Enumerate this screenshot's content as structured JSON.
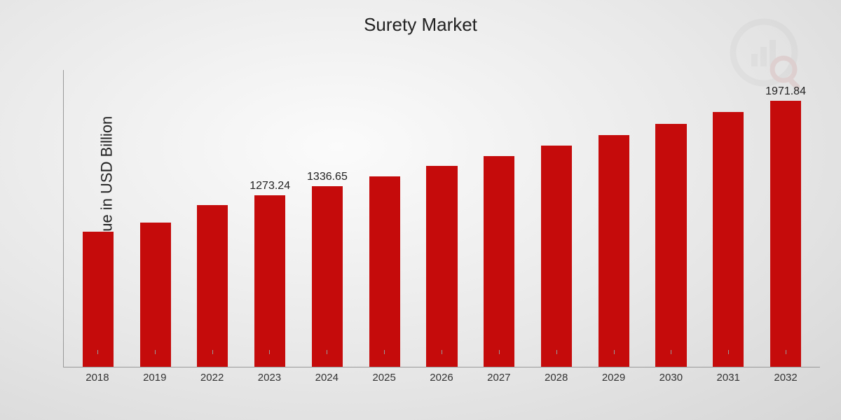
{
  "chart": {
    "type": "bar",
    "title": "Surety Market",
    "ylabel": "Market Value in USD Billion",
    "title_fontsize": 26,
    "ylabel_fontsize": 22,
    "value_label_fontsize": 16,
    "xtick_fontsize": 15,
    "background_gradient": {
      "inner": "#fbfbfb",
      "mid": "#e8e8e8",
      "outer": "#d6d6d6"
    },
    "axis_color": "#999999",
    "text_color": "#222222",
    "bar_color": "#c50b0b",
    "bar_width_pct": 54,
    "ylim": [
      0,
      2200
    ],
    "categories": [
      "2018",
      "2019",
      "2022",
      "2023",
      "2024",
      "2025",
      "2026",
      "2027",
      "2028",
      "2029",
      "2030",
      "2031",
      "2032"
    ],
    "values": [
      1000,
      1070,
      1200,
      1273.24,
      1336.65,
      1410,
      1490,
      1560,
      1640,
      1720,
      1800,
      1890,
      1971.84
    ],
    "value_labels": [
      "",
      "",
      "",
      "1273.24",
      "1336.65",
      "",
      "",
      "",
      "",
      "",
      "",
      "",
      "1971.84"
    ],
    "watermark": {
      "opacity": 0.12,
      "ring_color": "#b0b0b0",
      "bar_color": "#b0b0b0",
      "glass_color": "#b94a4a"
    }
  }
}
